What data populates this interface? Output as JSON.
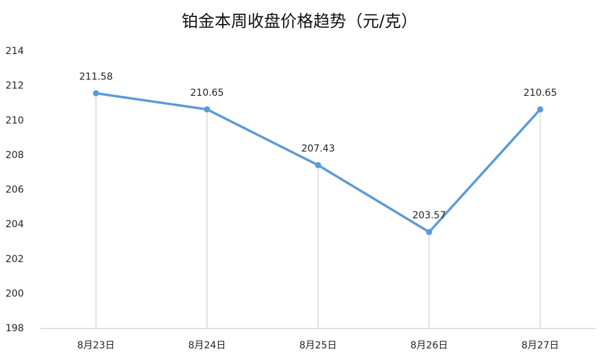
{
  "chart_data": {
    "type": "line",
    "title": "铂金本周收盘价格趋势（元/克）",
    "categories": [
      "8月23日",
      "8月24日",
      "8月25日",
      "8月26日",
      "8月27日"
    ],
    "values": [
      211.58,
      210.65,
      207.43,
      203.57,
      210.65
    ],
    "color": "#5b9bd5",
    "ylim": [
      198,
      214
    ],
    "yticks": [
      198,
      200,
      202,
      204,
      206,
      208,
      210,
      212,
      214
    ],
    "grid": false,
    "drop_lines": true
  }
}
